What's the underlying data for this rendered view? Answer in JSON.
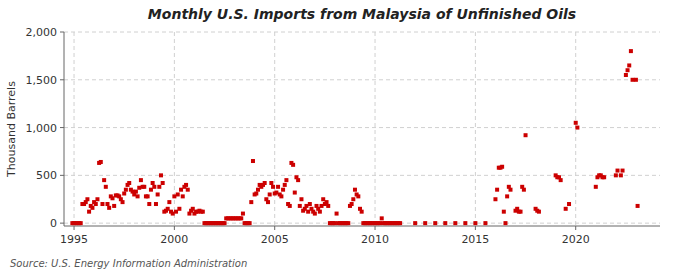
{
  "chart_data": {
    "type": "scatter",
    "title": "Monthly U.S. Imports from Malaysia of Unfinished Oils",
    "y_label": "Thousand Barrels",
    "source": "Source: U.S. Energy Information Administration",
    "xlim": [
      1994.5,
      2024.2
    ],
    "ylim": [
      -30,
      2000
    ],
    "xticks": [
      1995,
      2000,
      2005,
      2010,
      2015,
      2020
    ],
    "yticks": [
      0,
      500,
      {
        "value": 1000,
        "label": "1,000"
      },
      {
        "value": 1500,
        "label": "1,500"
      },
      {
        "value": 2000,
        "label": "2,000"
      }
    ],
    "color": "#cc0000",
    "marker": "square",
    "grid": true,
    "x": [
      1994.917,
      1995.0,
      1995.083,
      1995.167,
      1995.25,
      1995.333,
      1995.417,
      1995.5,
      1995.583,
      1995.667,
      1995.75,
      1995.833,
      1995.917,
      1996.0,
      1996.083,
      1996.167,
      1996.25,
      1996.333,
      1996.417,
      1996.5,
      1996.583,
      1996.667,
      1996.75,
      1996.833,
      1996.917,
      1997.0,
      1997.083,
      1997.167,
      1997.25,
      1997.333,
      1997.417,
      1997.5,
      1997.583,
      1997.667,
      1997.75,
      1997.833,
      1997.917,
      1998.0,
      1998.083,
      1998.167,
      1998.25,
      1998.333,
      1998.417,
      1998.5,
      1998.583,
      1998.667,
      1998.75,
      1998.833,
      1998.917,
      1999.0,
      1999.083,
      1999.167,
      1999.25,
      1999.333,
      1999.417,
      1999.5,
      1999.583,
      1999.667,
      1999.75,
      1999.833,
      1999.917,
      2000.0,
      2000.083,
      2000.167,
      2000.25,
      2000.333,
      2000.417,
      2000.5,
      2000.583,
      2000.667,
      2000.75,
      2000.833,
      2000.917,
      2001.0,
      2001.083,
      2001.167,
      2001.25,
      2001.333,
      2001.417,
      2001.5,
      2001.583,
      2001.667,
      2001.75,
      2001.833,
      2001.917,
      2002.0,
      2002.083,
      2002.167,
      2002.25,
      2002.333,
      2002.417,
      2002.5,
      2002.583,
      2002.667,
      2002.75,
      2002.833,
      2002.917,
      2003.0,
      2003.083,
      2003.167,
      2003.25,
      2003.333,
      2003.417,
      2003.5,
      2003.583,
      2003.667,
      2003.75,
      2003.833,
      2003.917,
      2004.0,
      2004.083,
      2004.167,
      2004.25,
      2004.333,
      2004.417,
      2004.5,
      2004.583,
      2004.667,
      2004.75,
      2004.833,
      2004.917,
      2005.0,
      2005.083,
      2005.167,
      2005.25,
      2005.333,
      2005.417,
      2005.5,
      2005.583,
      2005.667,
      2005.75,
      2005.833,
      2005.917,
      2006.0,
      2006.083,
      2006.167,
      2006.25,
      2006.333,
      2006.417,
      2006.5,
      2006.583,
      2006.667,
      2006.75,
      2006.833,
      2006.917,
      2007.0,
      2007.083,
      2007.167,
      2007.25,
      2007.333,
      2007.417,
      2007.5,
      2007.583,
      2007.667,
      2007.75,
      2007.833,
      2007.917,
      2008.0,
      2008.083,
      2008.167,
      2008.25,
      2008.333,
      2008.417,
      2008.5,
      2008.583,
      2008.667,
      2008.75,
      2008.833,
      2008.917,
      2009.0,
      2009.083,
      2009.167,
      2009.25,
      2009.333,
      2009.417,
      2009.5,
      2009.583,
      2009.667,
      2009.75,
      2009.833,
      2009.917,
      2010.0,
      2010.083,
      2010.167,
      2010.25,
      2010.333,
      2010.417,
      2010.5,
      2010.583,
      2010.667,
      2010.75,
      2010.833,
      2010.917,
      2011.0,
      2011.083,
      2011.167,
      2011.25,
      2012.0,
      2012.5,
      2013.0,
      2013.5,
      2014.0,
      2014.5,
      2015.0,
      2015.5,
      2016.0,
      2016.083,
      2016.167,
      2016.25,
      2016.333,
      2016.417,
      2016.5,
      2016.583,
      2016.667,
      2016.75,
      2017.0,
      2017.083,
      2017.167,
      2017.25,
      2017.333,
      2017.417,
      2017.5,
      2018.0,
      2018.083,
      2018.167,
      2019.0,
      2019.083,
      2019.167,
      2019.25,
      2019.5,
      2019.667,
      2020.0,
      2020.083,
      2021.0,
      2021.083,
      2021.167,
      2021.25,
      2021.333,
      2021.417,
      2022.0,
      2022.083,
      2022.25,
      2022.333,
      2022.5,
      2022.583,
      2022.667,
      2022.75,
      2022.833,
      2023.0,
      2023.083
    ],
    "values": [
      0,
      0,
      0,
      0,
      0,
      0,
      200,
      200,
      220,
      250,
      120,
      180,
      160,
      220,
      200,
      250,
      630,
      640,
      200,
      450,
      380,
      200,
      160,
      280,
      260,
      180,
      290,
      290,
      280,
      250,
      220,
      310,
      350,
      400,
      420,
      350,
      330,
      300,
      330,
      280,
      370,
      450,
      380,
      380,
      280,
      280,
      200,
      350,
      420,
      380,
      200,
      300,
      380,
      500,
      420,
      120,
      130,
      150,
      220,
      120,
      100,
      280,
      120,
      300,
      150,
      350,
      280,
      380,
      400,
      350,
      100,
      130,
      150,
      100,
      120,
      120,
      130,
      120,
      120,
      0,
      0,
      0,
      0,
      0,
      0,
      0,
      0,
      0,
      0,
      0,
      0,
      0,
      50,
      50,
      50,
      50,
      50,
      50,
      50,
      50,
      50,
      50,
      100,
      0,
      0,
      0,
      0,
      220,
      650,
      300,
      310,
      350,
      400,
      380,
      400,
      420,
      250,
      220,
      300,
      420,
      380,
      310,
      320,
      380,
      300,
      280,
      350,
      400,
      450,
      200,
      180,
      630,
      610,
      320,
      480,
      450,
      180,
      250,
      130,
      150,
      180,
      120,
      200,
      150,
      120,
      100,
      180,
      150,
      120,
      180,
      250,
      200,
      220,
      180,
      0,
      0,
      0,
      0,
      100,
      0,
      0,
      0,
      0,
      0,
      0,
      0,
      180,
      200,
      250,
      350,
      300,
      280,
      150,
      120,
      0,
      0,
      0,
      0,
      0,
      0,
      0,
      0,
      0,
      0,
      0,
      50,
      0,
      0,
      0,
      0,
      0,
      0,
      0,
      0,
      0,
      0,
      0,
      0,
      0,
      0,
      0,
      0,
      0,
      0,
      0,
      250,
      350,
      580,
      580,
      590,
      120,
      0,
      280,
      380,
      350,
      130,
      150,
      120,
      120,
      380,
      350,
      920,
      150,
      130,
      120,
      500,
      480,
      480,
      450,
      150,
      200,
      1050,
      1000,
      380,
      480,
      500,
      500,
      480,
      480,
      500,
      550,
      500,
      550,
      1550,
      1600,
      1650,
      1800,
      1500,
      1500,
      180
    ]
  }
}
